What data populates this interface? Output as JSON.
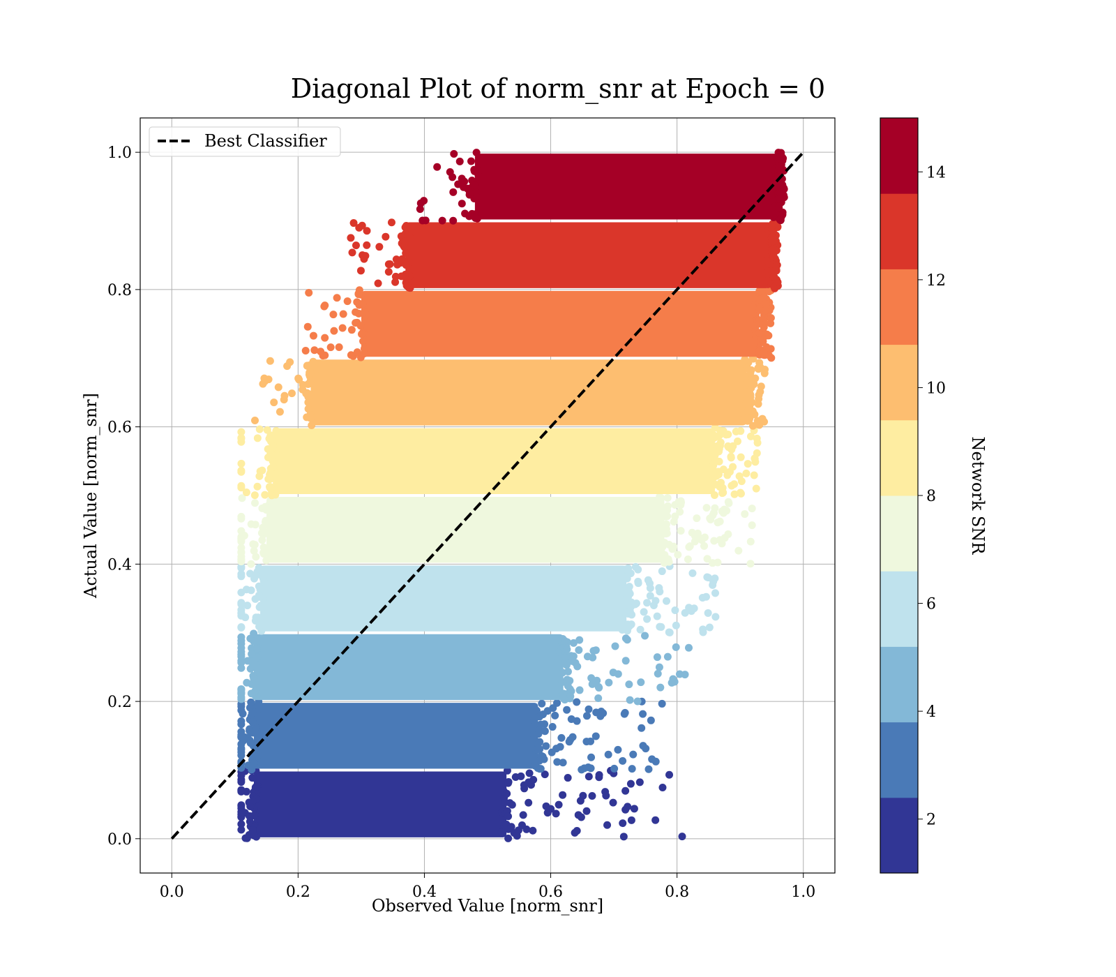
{
  "chart_data": {
    "type": "scatter",
    "title": "Diagonal Plot of norm_snr at Epoch = 0",
    "xlabel": "Observed Value [norm_snr]",
    "ylabel": "Actual Value [norm_snr]",
    "xlim": [
      -0.05,
      1.05
    ],
    "ylim": [
      -0.05,
      1.05
    ],
    "xticks": [
      "0.0",
      "0.2",
      "0.4",
      "0.6",
      "0.8",
      "1.0"
    ],
    "yticks": [
      "0.0",
      "0.2",
      "0.4",
      "0.6",
      "0.8",
      "1.0"
    ],
    "grid": true,
    "legend": {
      "position": "upper-left",
      "entries": [
        "Best Classifier"
      ]
    },
    "reference_line": {
      "name": "Best Classifier",
      "style": "dashed",
      "color": "#000000",
      "x": [
        0.0,
        1.0
      ],
      "y": [
        0.0,
        1.0
      ]
    },
    "colorbar": {
      "label": "Network SNR",
      "range": [
        1,
        15
      ],
      "ticks": [
        "2",
        "4",
        "6",
        "8",
        "10",
        "12",
        "14"
      ],
      "colormap": "RdYlBu_r"
    },
    "bands": [
      {
        "y_range": [
          0.0,
          0.1
        ],
        "x_core": [
          0.13,
          0.53
        ],
        "x_tail_max": 0.82,
        "snr": 1.7,
        "color": "#313695"
      },
      {
        "y_range": [
          0.1,
          0.2
        ],
        "x_core": [
          0.13,
          0.58
        ],
        "x_tail_max": 0.78,
        "snr": 3.1,
        "color": "#4a7ab7"
      },
      {
        "y_range": [
          0.2,
          0.3
        ],
        "x_core": [
          0.13,
          0.62
        ],
        "x_tail_max": 0.82,
        "snr": 4.5,
        "color": "#83b8d7"
      },
      {
        "y_range": [
          0.3,
          0.4
        ],
        "x_core": [
          0.14,
          0.72
        ],
        "x_tail_max": 0.87,
        "snr": 5.9,
        "color": "#bfe2ed"
      },
      {
        "y_range": [
          0.4,
          0.5
        ],
        "x_core": [
          0.15,
          0.78
        ],
        "x_tail_max": 0.92,
        "snr": 7.3,
        "color": "#eff8de"
      },
      {
        "y_range": [
          0.5,
          0.6
        ],
        "x_core": [
          0.16,
          0.86
        ],
        "x_tail_max": 0.93,
        "snr": 8.7,
        "color": "#feeda1"
      },
      {
        "y_range": [
          0.6,
          0.7
        ],
        "x_core": [
          0.22,
          0.91
        ],
        "x_tail_max": 0.94,
        "snr": 10.1,
        "color": "#fdbe70"
      },
      {
        "y_range": [
          0.7,
          0.8
        ],
        "x_core": [
          0.3,
          0.93
        ],
        "x_tail_max": 0.95,
        "snr": 11.5,
        "color": "#f57d4a"
      },
      {
        "y_range": [
          0.8,
          0.9
        ],
        "x_core": [
          0.37,
          0.95
        ],
        "x_tail_max": 0.96,
        "snr": 12.9,
        "color": "#da362a"
      },
      {
        "y_range": [
          0.9,
          1.0
        ],
        "x_core": [
          0.48,
          0.96
        ],
        "x_tail_max": 0.97,
        "snr": 14.3,
        "color": "#a50026"
      }
    ]
  }
}
